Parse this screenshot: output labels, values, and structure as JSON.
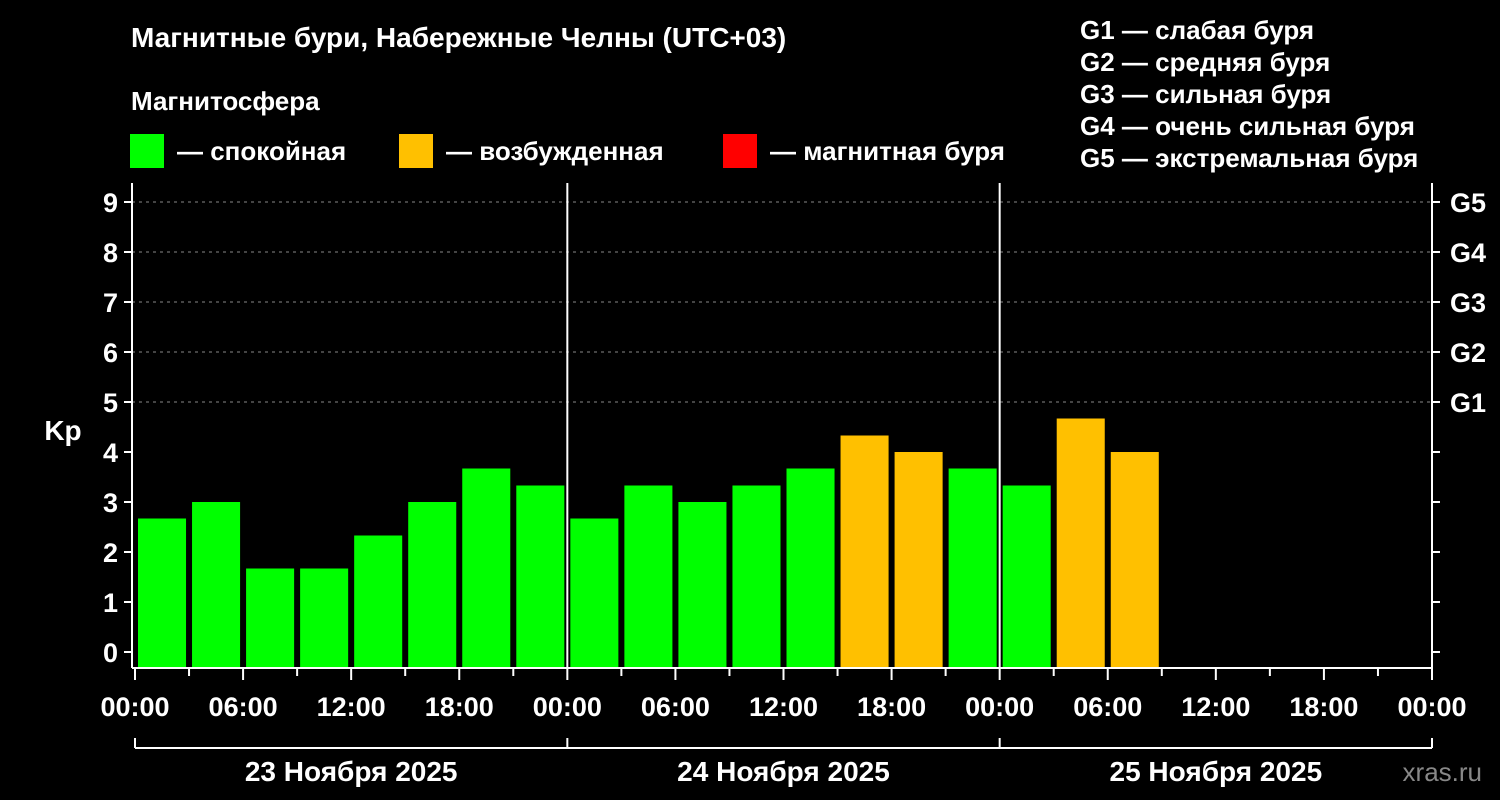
{
  "title": "Магнитные бури, Набережные Челны (UTC+03)",
  "subtitle": "Магнитосфера",
  "legend": [
    {
      "label": "— спокойная",
      "color": "#00ff00"
    },
    {
      "label": "— возбужденная",
      "color": "#ffc000"
    },
    {
      "label": "— магнитная буря",
      "color": "#ff0000"
    }
  ],
  "g_legend": [
    "G1 — слабая буря",
    "G2 — средняя буря",
    "G3 — сильная буря",
    "G4 — очень сильная буря",
    "G5 — экстремальная буря"
  ],
  "watermark": "xras.ru",
  "chart_data": {
    "type": "bar",
    "ylabel": "Kp",
    "ylim": [
      0,
      9
    ],
    "yticks": [
      0,
      1,
      2,
      3,
      4,
      5,
      6,
      7,
      8,
      9
    ],
    "g_ticks": [
      {
        "kp": 5,
        "label": "G1"
      },
      {
        "kp": 6,
        "label": "G2"
      },
      {
        "kp": 7,
        "label": "G3"
      },
      {
        "kp": 8,
        "label": "G4"
      },
      {
        "kp": 9,
        "label": "G5"
      }
    ],
    "xtick_labels": [
      "00:00",
      "06:00",
      "12:00",
      "18:00",
      "00:00",
      "06:00",
      "12:00",
      "18:00",
      "00:00",
      "06:00",
      "12:00",
      "18:00",
      "00:00"
    ],
    "days": [
      "23 Ноября 2025",
      "24 Ноября 2025",
      "25 Ноября 2025"
    ],
    "interval_hours": 3,
    "categories": [
      "23 Ноября 2025 00:00",
      "23 Ноября 2025 03:00",
      "23 Ноября 2025 06:00",
      "23 Ноября 2025 09:00",
      "23 Ноября 2025 12:00",
      "23 Ноября 2025 15:00",
      "23 Ноября 2025 18:00",
      "23 Ноября 2025 21:00",
      "24 Ноября 2025 00:00",
      "24 Ноября 2025 03:00",
      "24 Ноября 2025 06:00",
      "24 Ноября 2025 09:00",
      "24 Ноября 2025 12:00",
      "24 Ноября 2025 15:00",
      "24 Ноября 2025 18:00",
      "24 Ноября 2025 21:00",
      "25 Ноября 2025 00:00",
      "25 Ноября 2025 03:00",
      "25 Ноября 2025 06:00"
    ],
    "values": [
      2.67,
      3.0,
      1.67,
      1.67,
      2.33,
      3.0,
      3.67,
      3.33,
      2.67,
      3.33,
      3.0,
      3.33,
      3.67,
      4.33,
      4.0,
      3.67,
      3.33,
      4.67,
      4.0
    ],
    "bar_colors": [
      "#00ff00",
      "#00ff00",
      "#00ff00",
      "#00ff00",
      "#00ff00",
      "#00ff00",
      "#00ff00",
      "#00ff00",
      "#00ff00",
      "#00ff00",
      "#00ff00",
      "#00ff00",
      "#00ff00",
      "#ffc000",
      "#ffc000",
      "#00ff00",
      "#00ff00",
      "#ffc000",
      "#ffc000"
    ],
    "grid": "dashed horizontal"
  }
}
